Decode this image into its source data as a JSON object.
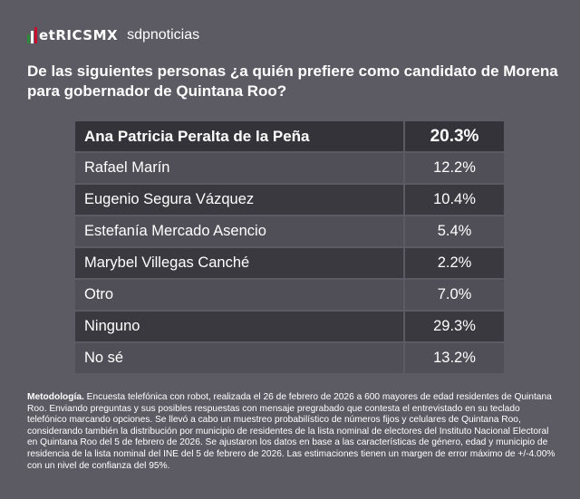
{
  "header": {
    "logo_text": "etRICSMX",
    "partner": "sdpnoticias",
    "logo_colors": [
      "#2e8b3a",
      "#ffffff",
      "#c8102e"
    ]
  },
  "question": "De las siguientes personas ¿a quién prefiere como candidato de Morena para gobernador de Quintana Roo?",
  "chart_data": {
    "type": "table",
    "rows": [
      {
        "name": "Ana Patricia Peralta de la Peña",
        "value": "20.3%"
      },
      {
        "name": "Rafael Marín",
        "value": "12.2%"
      },
      {
        "name": "Eugenio Segura Vázquez",
        "value": "10.4%"
      },
      {
        "name": "Estefanía Mercado Asencio",
        "value": "5.4%"
      },
      {
        "name": "Marybel Villegas Canché",
        "value": "2.2%"
      },
      {
        "name": "Otro",
        "value": "7.0%"
      },
      {
        "name": "Ninguno",
        "value": "29.3%"
      },
      {
        "name": "No sé",
        "value": "13.2%"
      }
    ]
  },
  "methodology": {
    "label": "Metodología.",
    "text": "Encuesta telefónica con robot, realizada el 26 de febrero de 2026 a 600 mayores de edad residentes de Quintana Roo. Enviando preguntas y sus posibles respuestas con mensaje pregrabado que contesta el entrevistado en su teclado telefónico marcando opciones. Se llevó a cabo un muestreo probabilístico de números fijos y celulares de Quintana Roo, considerando también la distribución por municipio de residentes de la lista nominal de electores del Instituto Nacional Electoral en Quintana Roo del 5 de febrero de 2026. Se ajustaron los datos en base a las características de género, edad y municipio de residencia de la lista nominal del INE del 5 de febrero de 2026. Las estimaciones tienen un margen de error máximo de +/-4.00% con un nivel de confianza del 95%."
  }
}
